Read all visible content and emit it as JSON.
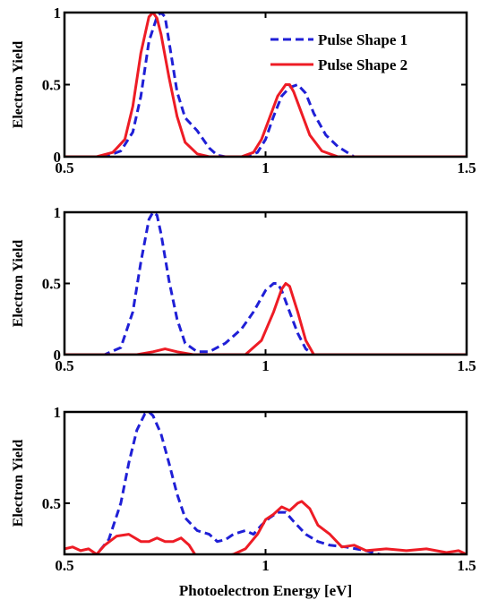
{
  "chart_data": [
    {
      "type": "line",
      "xlabel": "",
      "ylabel": "Electron Yield",
      "xlim": [
        0.5,
        1.5
      ],
      "ylim": [
        0,
        1
      ],
      "xticks": [
        0.5,
        1,
        1.5
      ],
      "xtick_labels": [
        "0.5",
        "1",
        "1.5"
      ],
      "yticks": [
        0,
        0.5,
        1
      ],
      "ytick_labels": [
        "0",
        "0.5",
        "1"
      ],
      "legend": {
        "placement": "top-right",
        "entries": [
          "Pulse Shape 1",
          "Pulse Shape 2"
        ]
      },
      "series": [
        {
          "name": "Pulse Shape 1",
          "color": "#1f1fd6",
          "style": "dashed",
          "x": [
            0.5,
            0.6,
            0.64,
            0.67,
            0.69,
            0.71,
            0.73,
            0.74,
            0.75,
            0.76,
            0.78,
            0.8,
            0.83,
            0.86,
            0.88,
            0.9,
            0.92,
            0.95,
            0.98,
            1.0,
            1.02,
            1.04,
            1.06,
            1.08,
            1.1,
            1.12,
            1.15,
            1.18,
            1.22,
            1.3,
            1.5
          ],
          "values": [
            0,
            0,
            0.04,
            0.17,
            0.42,
            0.8,
            0.97,
            1.0,
            0.97,
            0.8,
            0.45,
            0.27,
            0.18,
            0.06,
            0.01,
            0,
            0,
            0,
            0.03,
            0.12,
            0.28,
            0.42,
            0.48,
            0.5,
            0.44,
            0.3,
            0.15,
            0.07,
            0,
            0,
            0
          ]
        },
        {
          "name": "Pulse Shape 2",
          "color": "#ee1c25",
          "style": "solid",
          "x": [
            0.5,
            0.58,
            0.62,
            0.65,
            0.67,
            0.69,
            0.71,
            0.72,
            0.73,
            0.74,
            0.76,
            0.78,
            0.8,
            0.83,
            0.86,
            0.9,
            0.94,
            0.97,
            0.99,
            1.01,
            1.03,
            1.05,
            1.06,
            1.07,
            1.09,
            1.11,
            1.14,
            1.18,
            1.3,
            1.5
          ],
          "values": [
            0,
            0,
            0.03,
            0.12,
            0.35,
            0.72,
            0.97,
            1.0,
            0.96,
            0.85,
            0.55,
            0.28,
            0.1,
            0.02,
            0,
            0,
            0,
            0.03,
            0.12,
            0.27,
            0.42,
            0.5,
            0.5,
            0.45,
            0.3,
            0.15,
            0.04,
            0,
            0,
            0
          ]
        }
      ]
    },
    {
      "type": "line",
      "xlabel": "",
      "ylabel": "Electron Yield",
      "xlim": [
        0.5,
        1.5
      ],
      "ylim": [
        0,
        1
      ],
      "xticks": [
        0.5,
        1,
        1.5
      ],
      "xtick_labels": [
        "0.5",
        "1",
        "1.5"
      ],
      "yticks": [
        0,
        0.5,
        1
      ],
      "ytick_labels": [
        "0",
        "0.5",
        "1"
      ],
      "series": [
        {
          "name": "Pulse Shape 1",
          "color": "#1f1fd6",
          "style": "dashed",
          "x": [
            0.5,
            0.6,
            0.64,
            0.67,
            0.69,
            0.71,
            0.72,
            0.73,
            0.74,
            0.76,
            0.78,
            0.8,
            0.83,
            0.86,
            0.9,
            0.94,
            0.97,
            1.0,
            1.02,
            1.03,
            1.04,
            1.06,
            1.08,
            1.1,
            1.12,
            1.5
          ],
          "values": [
            0,
            0,
            0.05,
            0.3,
            0.65,
            0.95,
            1.0,
            0.98,
            0.85,
            0.52,
            0.25,
            0.08,
            0.02,
            0.02,
            0.08,
            0.18,
            0.3,
            0.45,
            0.5,
            0.5,
            0.45,
            0.3,
            0.15,
            0.04,
            0,
            0
          ]
        },
        {
          "name": "Pulse Shape 2",
          "color": "#ee1c25",
          "style": "solid",
          "x": [
            0.5,
            0.68,
            0.72,
            0.75,
            0.78,
            0.82,
            0.95,
            0.99,
            1.02,
            1.04,
            1.05,
            1.06,
            1.08,
            1.1,
            1.12,
            1.5
          ],
          "values": [
            0,
            0,
            0.02,
            0.04,
            0.02,
            0,
            0,
            0.1,
            0.3,
            0.46,
            0.5,
            0.48,
            0.3,
            0.1,
            0,
            0
          ]
        }
      ]
    },
    {
      "type": "line",
      "xlabel": "Photoelectron Energy [eV]",
      "ylabel": "Electron Yield",
      "xlim": [
        0.5,
        1.5
      ],
      "ylim": [
        0.22,
        1
      ],
      "xticks": [
        0.5,
        1,
        1.5
      ],
      "xtick_labels": [
        "0.5",
        "1",
        "1.5"
      ],
      "yticks": [
        0.5,
        1
      ],
      "ytick_labels": [
        "0.5",
        "1"
      ],
      "series": [
        {
          "name": "Pulse Shape 1",
          "color": "#1f1fd6",
          "style": "dashed",
          "x": [
            0.5,
            0.55,
            0.58,
            0.61,
            0.64,
            0.66,
            0.68,
            0.7,
            0.71,
            0.72,
            0.74,
            0.76,
            0.78,
            0.8,
            0.83,
            0.86,
            0.88,
            0.9,
            0.92,
            0.95,
            0.97,
            0.99,
            1.01,
            1.03,
            1.05,
            1.07,
            1.1,
            1.13,
            1.16,
            1.2,
            1.25,
            1.3,
            1.35,
            1.4,
            1.45,
            1.5
          ],
          "values": [
            0.2,
            0.2,
            0.22,
            0.3,
            0.5,
            0.72,
            0.9,
            0.99,
            1.0,
            0.98,
            0.88,
            0.72,
            0.55,
            0.42,
            0.35,
            0.33,
            0.29,
            0.3,
            0.33,
            0.35,
            0.33,
            0.38,
            0.42,
            0.45,
            0.45,
            0.4,
            0.33,
            0.29,
            0.27,
            0.26,
            0.24,
            0.21,
            0.21,
            0.2,
            0.2,
            0.2
          ]
        },
        {
          "name": "Pulse Shape 2",
          "color": "#ee1c25",
          "style": "solid",
          "x": [
            0.5,
            0.52,
            0.54,
            0.56,
            0.58,
            0.6,
            0.63,
            0.66,
            0.69,
            0.71,
            0.73,
            0.75,
            0.77,
            0.79,
            0.81,
            0.83,
            0.85,
            0.88,
            0.92,
            0.95,
            0.98,
            1.0,
            1.02,
            1.04,
            1.06,
            1.08,
            1.09,
            1.11,
            1.13,
            1.16,
            1.19,
            1.22,
            1.25,
            1.3,
            1.35,
            1.4,
            1.45,
            1.48,
            1.5
          ],
          "values": [
            0.25,
            0.26,
            0.24,
            0.25,
            0.22,
            0.27,
            0.32,
            0.33,
            0.29,
            0.29,
            0.31,
            0.29,
            0.29,
            0.31,
            0.27,
            0.2,
            0.2,
            0.2,
            0.22,
            0.25,
            0.33,
            0.41,
            0.44,
            0.48,
            0.46,
            0.5,
            0.51,
            0.47,
            0.38,
            0.33,
            0.26,
            0.27,
            0.24,
            0.25,
            0.24,
            0.25,
            0.23,
            0.24,
            0.22
          ]
        }
      ]
    }
  ]
}
